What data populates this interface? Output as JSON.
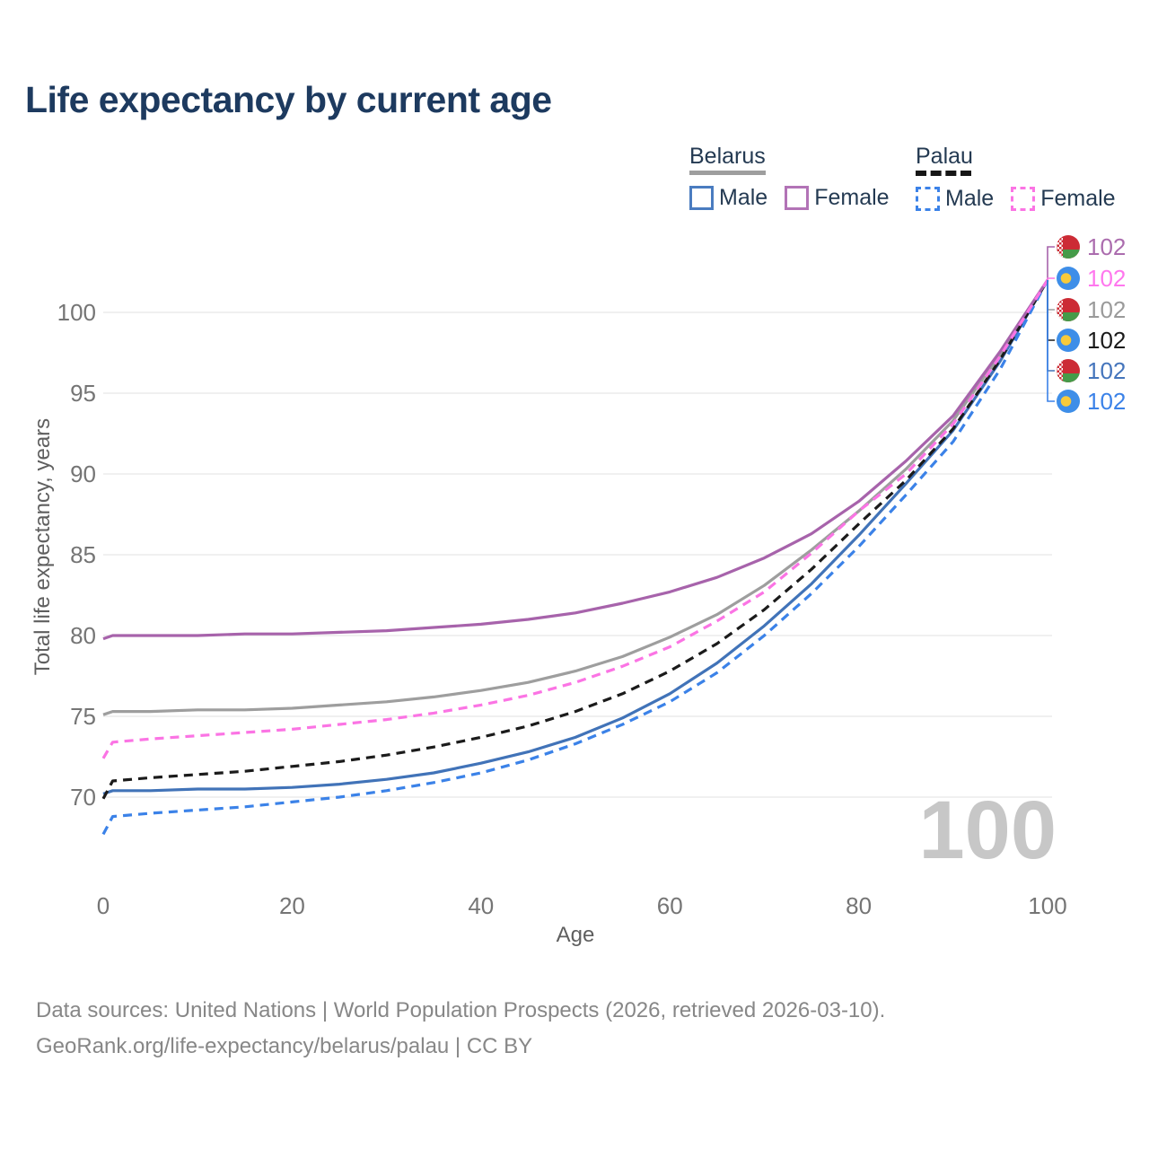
{
  "title": "Life expectancy by current age",
  "legend": {
    "groups": [
      {
        "name": "Belarus",
        "line_style": "solid",
        "line_color": "#9e9e9e",
        "items": [
          {
            "label": "Male",
            "color": "#4173b8"
          },
          {
            "label": "Female",
            "color": "#a763ab"
          }
        ]
      },
      {
        "name": "Palau",
        "line_style": "dashed",
        "line_color": "#161616",
        "items": [
          {
            "label": "Male",
            "color": "#3b82e8"
          },
          {
            "label": "Female",
            "color": "#fb74e4"
          }
        ]
      }
    ]
  },
  "chart_data": {
    "type": "line",
    "title": "Life expectancy by current age",
    "xlabel": "Age",
    "ylabel": "Total life expectancy, years",
    "x_ticks": [
      0,
      20,
      40,
      60,
      80,
      100
    ],
    "y_ticks": [
      70,
      75,
      80,
      85,
      90,
      95,
      100
    ],
    "xlim": [
      0,
      100
    ],
    "ylim": [
      66.5,
      103.5
    ],
    "grid": "horizontal",
    "legend_position": "top-right",
    "x": [
      0,
      1,
      5,
      10,
      15,
      20,
      25,
      30,
      35,
      40,
      45,
      50,
      55,
      60,
      65,
      70,
      75,
      80,
      85,
      90,
      95,
      100
    ],
    "series": [
      {
        "name": "Belarus Both sexes",
        "country": "Belarus",
        "sex": "Both",
        "color": "#9e9e9e",
        "dash": false,
        "values": [
          75.1,
          75.3,
          75.3,
          75.4,
          75.4,
          75.5,
          75.7,
          75.9,
          76.2,
          76.6,
          77.1,
          77.8,
          78.7,
          79.9,
          81.3,
          83.1,
          85.3,
          87.7,
          90.3,
          93.3,
          97.4,
          102
        ]
      },
      {
        "name": "Belarus Male",
        "country": "Belarus",
        "sex": "Male",
        "color": "#4173b8",
        "dash": false,
        "values": [
          70.2,
          70.4,
          70.4,
          70.5,
          70.5,
          70.6,
          70.8,
          71.1,
          71.5,
          72.1,
          72.8,
          73.7,
          74.9,
          76.4,
          78.3,
          80.6,
          83.2,
          86.2,
          89.4,
          92.7,
          97.0,
          102
        ]
      },
      {
        "name": "Palau Both sexes",
        "country": "Palau",
        "sex": "Both",
        "color": "#1b1b1b",
        "dash": true,
        "values": [
          69.9,
          71.0,
          71.2,
          71.4,
          71.6,
          71.9,
          72.2,
          72.6,
          73.1,
          73.7,
          74.4,
          75.3,
          76.4,
          77.8,
          79.5,
          81.6,
          84.1,
          86.9,
          89.6,
          92.8,
          97.1,
          102
        ]
      },
      {
        "name": "Palau Male",
        "country": "Palau",
        "sex": "Male",
        "color": "#3b82e8",
        "dash": true,
        "values": [
          67.7,
          68.8,
          69.0,
          69.2,
          69.4,
          69.7,
          70.0,
          70.4,
          70.9,
          71.5,
          72.3,
          73.3,
          74.5,
          75.9,
          77.7,
          80.0,
          82.6,
          85.5,
          88.7,
          92.0,
          96.5,
          102
        ]
      },
      {
        "name": "Belarus Female",
        "country": "Belarus",
        "sex": "Female",
        "color": "#a763ab",
        "dash": false,
        "values": [
          79.8,
          80.0,
          80.0,
          80.0,
          80.1,
          80.1,
          80.2,
          80.3,
          80.5,
          80.7,
          81.0,
          81.4,
          82.0,
          82.7,
          83.6,
          84.8,
          86.3,
          88.3,
          90.8,
          93.6,
          97.6,
          102
        ]
      },
      {
        "name": "Palau Female",
        "country": "Palau",
        "sex": "Female",
        "color": "#fb74e4",
        "dash": true,
        "values": [
          72.4,
          73.4,
          73.6,
          73.8,
          74.0,
          74.2,
          74.5,
          74.8,
          75.2,
          75.7,
          76.3,
          77.1,
          78.1,
          79.3,
          80.9,
          82.7,
          85.1,
          87.7,
          90.0,
          93.1,
          97.3,
          102
        ]
      }
    ],
    "end_labels": [
      {
        "value": "102",
        "flag": "belarus",
        "color": "#ab6cae",
        "leader_color": "#a763ab"
      },
      {
        "value": "102",
        "flag": "palau",
        "color": "#ff77ee",
        "leader_color": "#fb74e4"
      },
      {
        "value": "102",
        "flag": "belarus",
        "color": "#9a9a9a",
        "leader_color": "#9e9e9e"
      },
      {
        "value": "102",
        "flag": "palau",
        "color": "#1a1a1a",
        "leader_color": "#1b1b1b"
      },
      {
        "value": "102",
        "flag": "belarus",
        "color": "#4575bc",
        "leader_color": "#4173b8"
      },
      {
        "value": "102",
        "flag": "palau",
        "color": "#3b82e8",
        "leader_color": "#3b82e8"
      }
    ],
    "watermark": "100"
  },
  "footer": {
    "line1": "Data sources: United Nations | World Population Prospects (2026, retrieved 2026-03-10).",
    "line2": "GeoRank.org/life-expectancy/belarus/palau | CC BY"
  }
}
